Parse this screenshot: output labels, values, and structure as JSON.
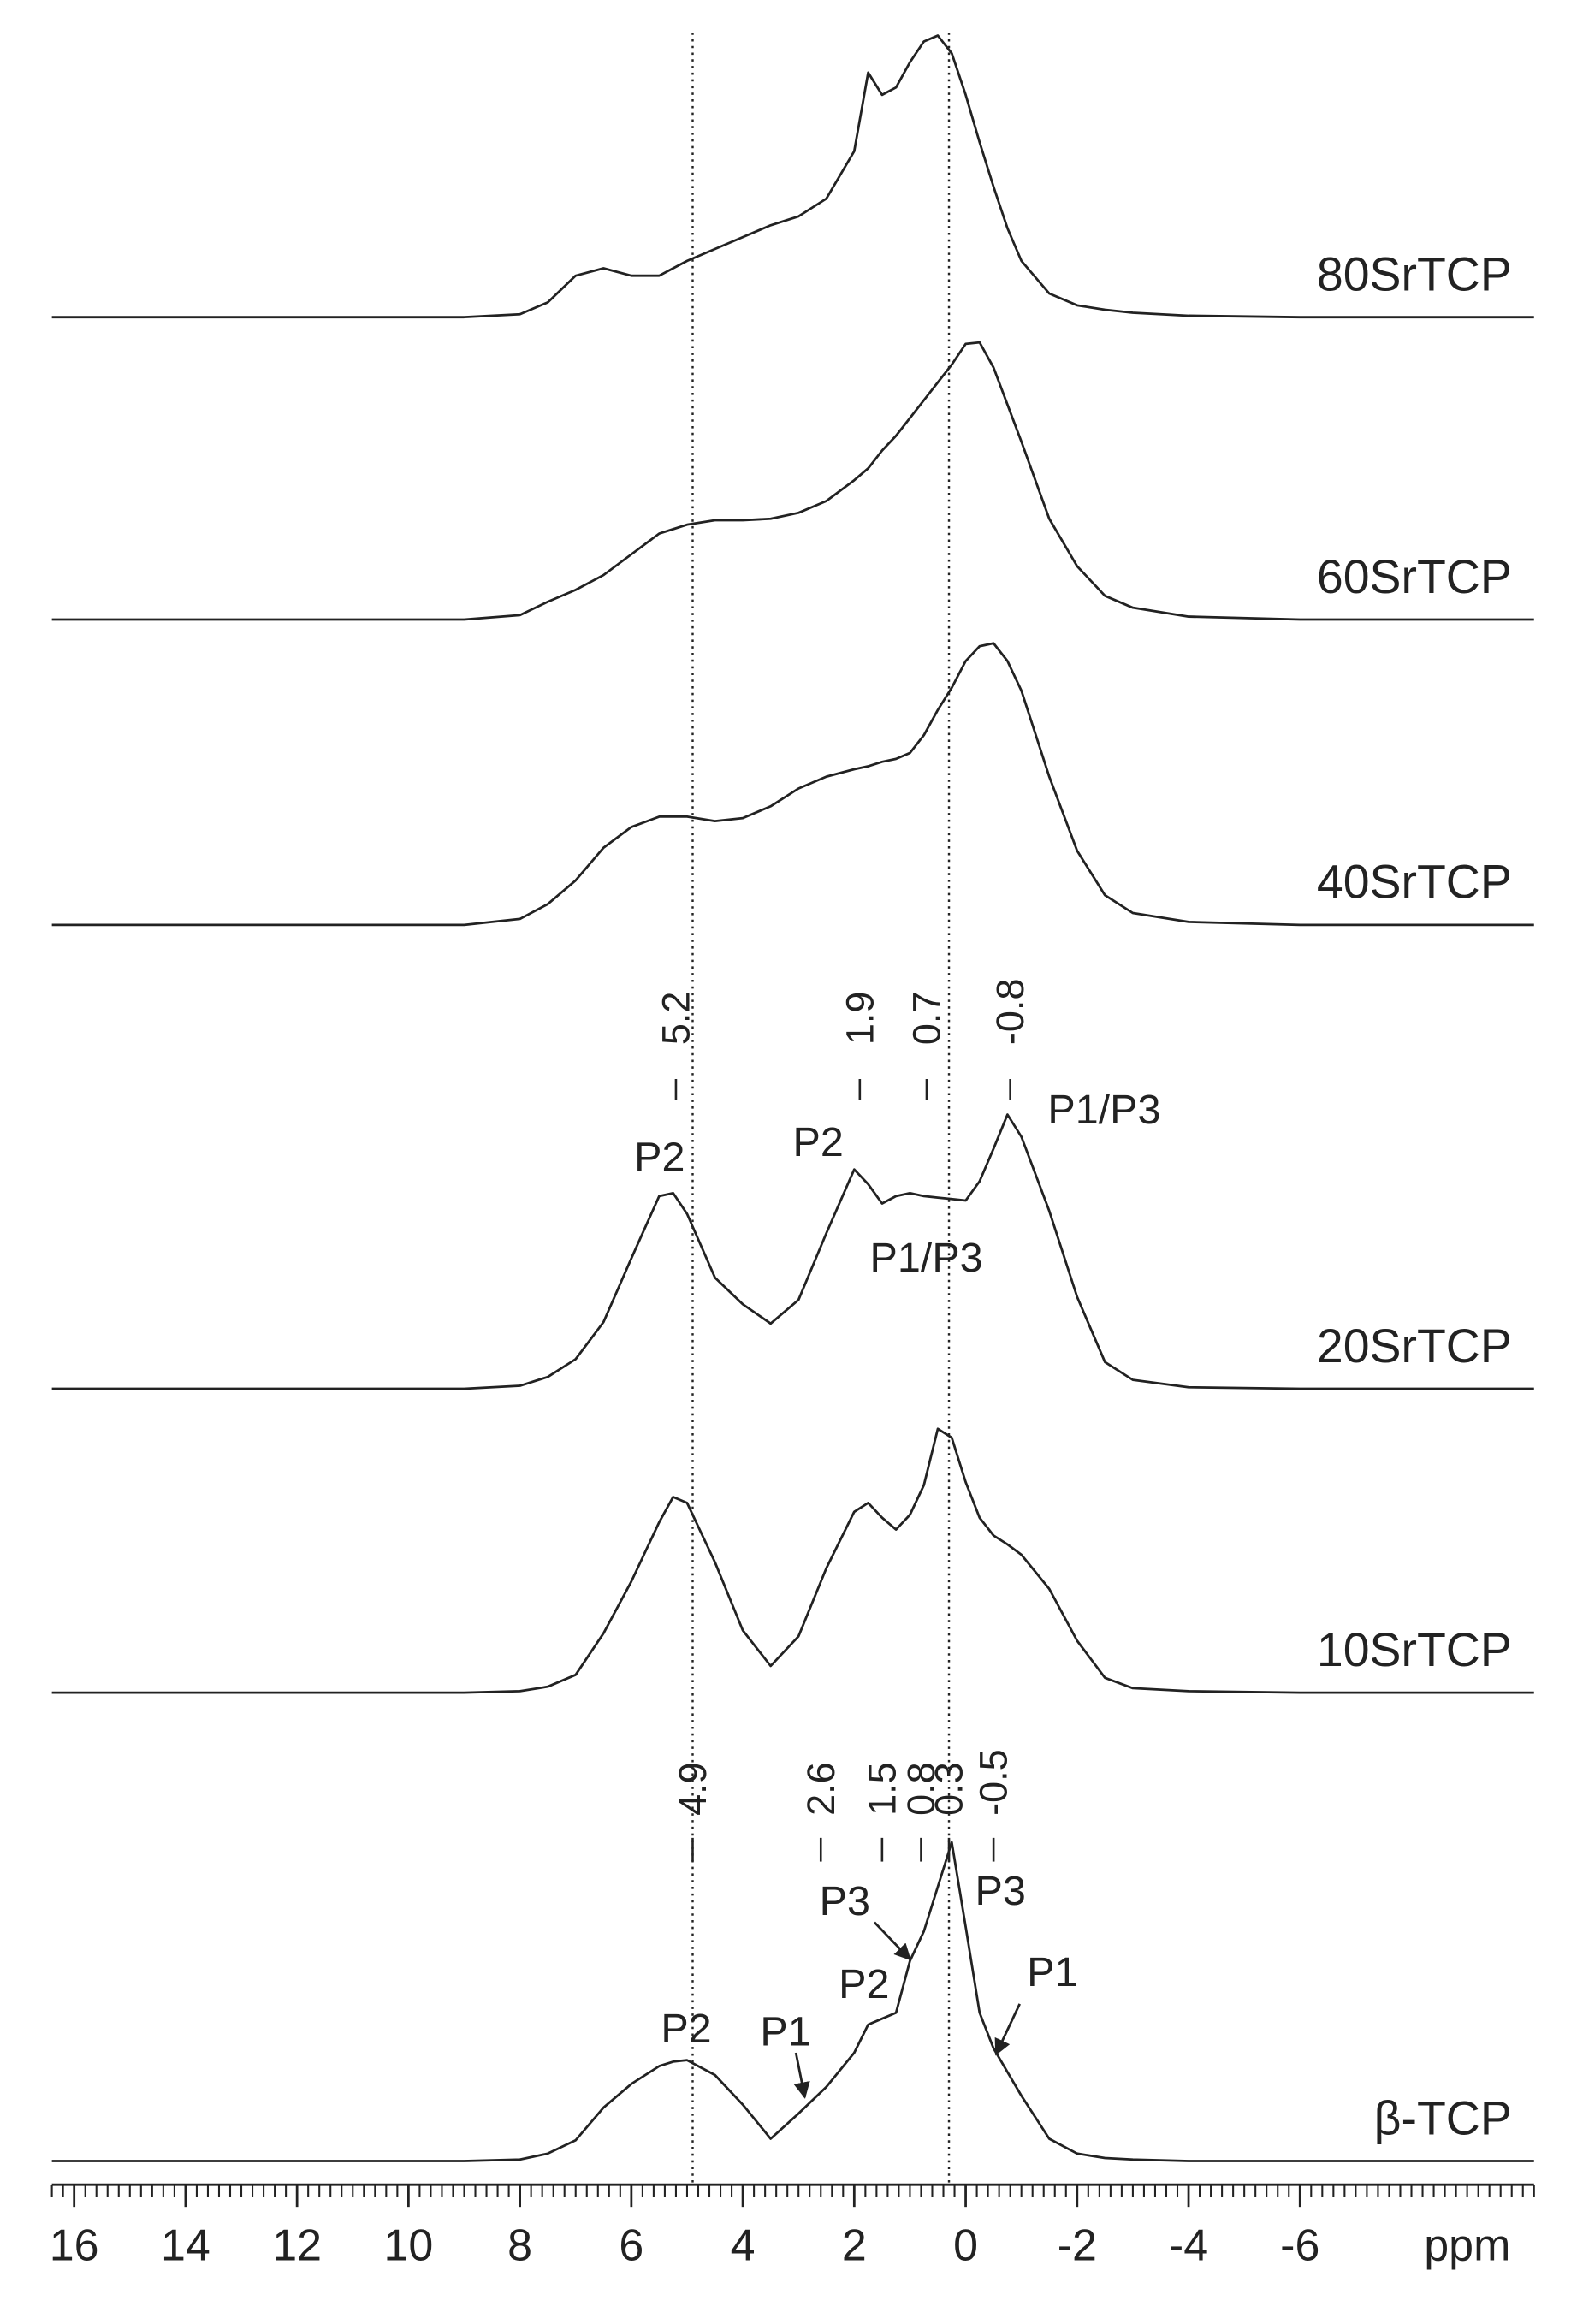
{
  "chart_data": {
    "type": "line",
    "x_label": "ppm",
    "xlim": [
      16.4,
      -10.2
    ],
    "xticks": [
      16,
      14,
      12,
      10,
      8,
      6,
      4,
      2,
      0,
      -2,
      -4,
      -6
    ],
    "minor_tick_interval": 0.2,
    "reference_lines": [
      4.9,
      0.3
    ],
    "x": [
      16.4,
      14,
      12,
      10,
      9,
      8,
      7.5,
      7,
      6.5,
      6,
      5.5,
      5.25,
      5,
      4.5,
      4,
      3.5,
      3,
      2.5,
      2,
      1.75,
      1.5,
      1.25,
      1,
      0.75,
      0.5,
      0.25,
      0,
      -0.25,
      -0.5,
      -0.75,
      -1,
      -1.5,
      -2,
      -2.5,
      -3,
      -4,
      -6,
      -8,
      -10.2
    ],
    "series": [
      {
        "name": "80SrTCP",
        "color": "#222222",
        "values": [
          0,
          0,
          0,
          0,
          0,
          2,
          10,
          28,
          33,
          28,
          28,
          33,
          38,
          46,
          54,
          62,
          68,
          80,
          112,
          165,
          150,
          155,
          172,
          186,
          190,
          178,
          150,
          118,
          88,
          60,
          38,
          16,
          8,
          5,
          3,
          1,
          0,
          0,
          0
        ]
      },
      {
        "name": "60SrTCP",
        "color": "#222222",
        "values": [
          0,
          0,
          0,
          0,
          0,
          3,
          12,
          20,
          30,
          44,
          58,
          61,
          64,
          67,
          67,
          68,
          72,
          80,
          94,
          102,
          114,
          124,
          136,
          148,
          160,
          172,
          186,
          187,
          170,
          145,
          120,
          68,
          36,
          16,
          8,
          2,
          0,
          0,
          0
        ]
      },
      {
        "name": "40SrTCP",
        "color": "#222222",
        "values": [
          0,
          0,
          0,
          0,
          0,
          4,
          14,
          30,
          52,
          66,
          73,
          73,
          73,
          70,
          72,
          80,
          92,
          100,
          105,
          107,
          110,
          112,
          116,
          128,
          145,
          160,
          178,
          188,
          190,
          178,
          158,
          100,
          50,
          20,
          8,
          2,
          0,
          0,
          0
        ]
      },
      {
        "name": "20SrTCP",
        "color": "#222222",
        "values": [
          0,
          0,
          0,
          0,
          0,
          2,
          8,
          20,
          45,
          88,
          130,
          132,
          118,
          75,
          57,
          44,
          60,
          105,
          148,
          138,
          125,
          130,
          132,
          130,
          129,
          128,
          127,
          140,
          162,
          185,
          170,
          120,
          62,
          18,
          6,
          1,
          0,
          0,
          0
        ],
        "peak_marks": [
          5.2,
          1.9,
          0.7,
          -0.8
        ],
        "peak_labels": [
          "P2",
          "P2",
          "P1/P3",
          "P1/P3"
        ]
      },
      {
        "name": "10SrTCP",
        "color": "#222222",
        "values": [
          0,
          0,
          0,
          0,
          0,
          1,
          4,
          12,
          40,
          75,
          115,
          132,
          128,
          88,
          42,
          18,
          38,
          84,
          122,
          128,
          118,
          110,
          120,
          140,
          178,
          172,
          142,
          118,
          106,
          100,
          93,
          70,
          35,
          10,
          3,
          1,
          0,
          0,
          0
        ]
      },
      {
        "name": "β-TCP",
        "color": "#222222",
        "values": [
          0,
          0,
          0,
          0,
          0,
          1,
          5,
          14,
          36,
          52,
          64,
          67,
          68,
          58,
          38,
          15,
          32,
          50,
          73,
          92,
          96,
          100,
          135,
          155,
          185,
          215,
          158,
          100,
          76,
          60,
          44,
          15,
          5,
          2,
          1,
          0,
          0,
          0,
          0
        ],
        "peak_marks": [
          4.9,
          2.6,
          1.5,
          0.8,
          0.3,
          -0.5
        ],
        "peak_labels": [
          "P2",
          "P1",
          "P2",
          "P3",
          "P3",
          "P1"
        ]
      }
    ]
  }
}
